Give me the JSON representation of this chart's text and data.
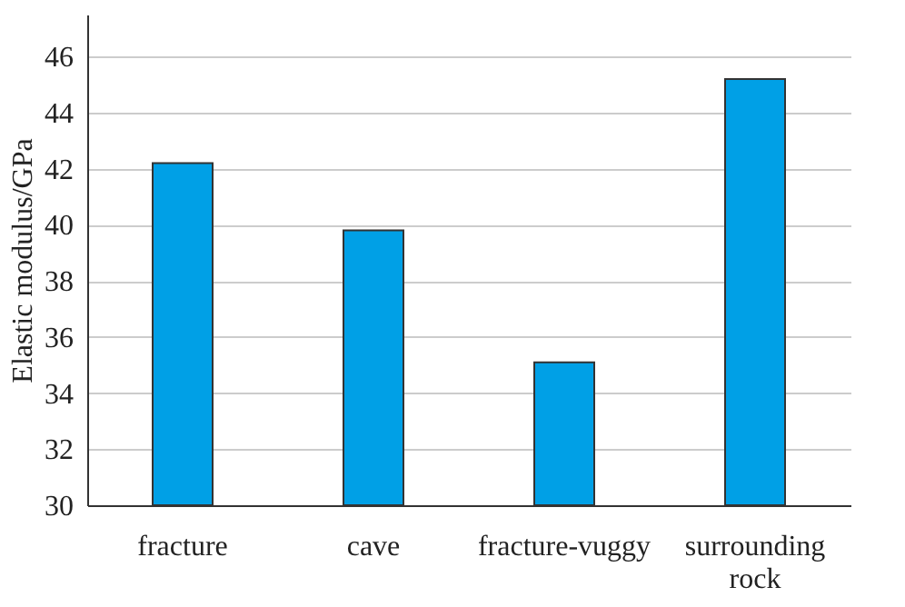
{
  "chart_data": {
    "type": "bar",
    "ylabel": "Elastic modulus/GPa",
    "categories": [
      "fracture",
      "cave",
      "fracture-vuggy",
      "surrounding rock"
    ],
    "values": [
      42.2,
      39.8,
      35.1,
      45.2
    ],
    "color": "#00a0e6",
    "ylim": [
      30,
      47.5
    ],
    "yticks": [
      30,
      32,
      34,
      36,
      38,
      40,
      42,
      44,
      46
    ],
    "grid": "y"
  }
}
